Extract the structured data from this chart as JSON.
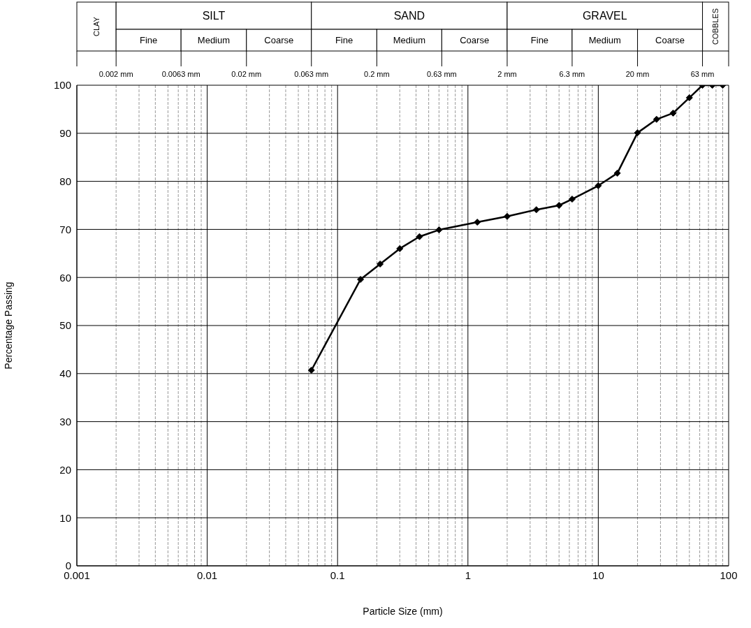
{
  "chart_data": {
    "type": "line",
    "xlabel": "Particle Size (mm)",
    "ylabel": "Percentage Passing",
    "x": [
      0.063,
      0.15,
      0.212,
      0.3,
      0.425,
      0.6,
      1.18,
      2,
      3.35,
      5,
      6.3,
      10,
      14,
      20,
      28,
      37.5,
      50,
      63,
      75,
      90
    ],
    "series": [
      {
        "color": "#000000",
        "values": [
          40.7,
          59.6,
          62.8,
          66,
          68.5,
          69.9,
          71.5,
          72.7,
          74.1,
          75,
          76.3,
          79.1,
          81.7,
          90.1,
          92.9,
          94.2,
          97.4,
          100,
          100,
          100
        ]
      }
    ],
    "log": "x",
    "xlim": [
      0.001,
      100
    ],
    "ylim": [
      0,
      100
    ],
    "xticks": [
      0.001,
      {
        "value": 0.002,
        "label": null
      },
      {
        "value": 0.003,
        "label": null
      },
      {
        "value": 0.004,
        "label": null
      },
      {
        "value": 0.005,
        "label": null
      },
      {
        "value": 0.006,
        "label": null
      },
      {
        "value": 0.007,
        "label": null
      },
      {
        "value": 0.008,
        "label": null
      },
      {
        "value": 0.009,
        "label": null
      },
      0.01,
      {
        "value": 0.02,
        "label": null
      },
      {
        "value": 0.03,
        "label": null
      },
      {
        "value": 0.04,
        "label": null
      },
      {
        "value": 0.05,
        "label": null
      },
      {
        "value": 0.06,
        "label": null
      },
      {
        "value": 0.07,
        "label": null
      },
      {
        "value": 0.08,
        "label": null
      },
      {
        "value": 0.09,
        "label": null
      },
      0.1,
      {
        "value": 0.2,
        "label": null
      },
      {
        "value": 0.3,
        "label": null
      },
      {
        "value": 0.4,
        "label": null
      },
      {
        "value": 0.5,
        "label": null
      },
      {
        "value": 0.6,
        "label": null
      },
      {
        "value": 0.7,
        "label": null
      },
      {
        "value": 0.8,
        "label": null
      },
      {
        "value": 0.9,
        "label": null
      },
      1,
      {
        "value": 2,
        "label": null
      },
      {
        "value": 3,
        "label": null
      },
      {
        "value": 4,
        "label": null
      },
      {
        "value": 5,
        "label": null
      },
      {
        "value": 6,
        "label": null
      },
      {
        "value": 7,
        "label": null
      },
      {
        "value": 8,
        "label": null
      },
      {
        "value": 9,
        "label": null
      },
      10,
      {
        "value": 20,
        "label": null
      },
      {
        "value": 30,
        "label": null
      },
      {
        "value": 40,
        "label": null
      },
      {
        "value": 50,
        "label": null
      },
      {
        "value": 60,
        "label": null
      },
      {
        "value": 70,
        "label": null
      },
      {
        "value": 80,
        "label": null
      },
      {
        "value": 90,
        "label": null
      },
      100
    ],
    "yticks": [
      0,
      10,
      20,
      30,
      40,
      50,
      60,
      70,
      80,
      90,
      100
    ],
    "ref_lines": [
      {
        "axis": "x",
        "value": 0.002,
        "label": "0.002 mm"
      },
      {
        "axis": "x",
        "value": 0.0063,
        "label": "0.0063 mm"
      },
      {
        "axis": "x",
        "value": 0.02,
        "label": "0.02 mm"
      },
      {
        "axis": "x",
        "value": 0.063,
        "label": "0.063 mm"
      },
      {
        "axis": "x",
        "value": 0.2,
        "label": "0.2 mm"
      },
      {
        "axis": "x",
        "value": 0.63,
        "label": "0.63 mm"
      },
      {
        "axis": "x",
        "value": 2,
        "label": "2 mm"
      },
      {
        "axis": "x",
        "value": 6.3,
        "label": "6.3 mm"
      },
      {
        "axis": "x",
        "value": 20,
        "label": "20 mm"
      },
      {
        "axis": "x",
        "value": 63,
        "label": "63 mm"
      }
    ],
    "annotations": [
      "CLAY",
      "SILT",
      "SAND",
      "GRAVEL",
      "COBBLES",
      "Fine",
      "Medium",
      "Coarse",
      "Fine",
      "Medium",
      "Coarse",
      "Fine",
      "Medium",
      "Coarse"
    ],
    "grid": true,
    "marker": "diamond",
    "line_style": "solid"
  }
}
